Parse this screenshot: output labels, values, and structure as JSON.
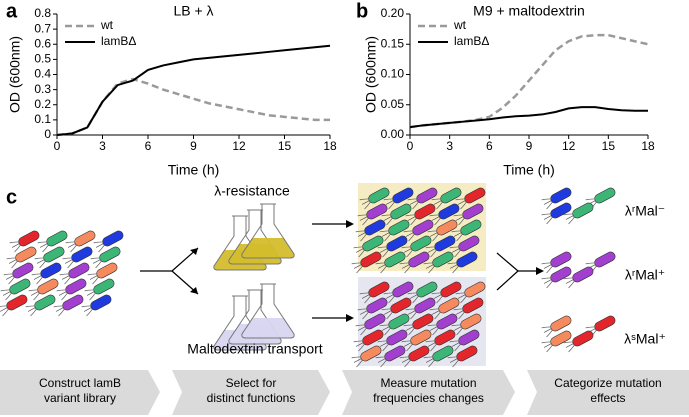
{
  "chart_data": [
    {
      "type": "line",
      "panel": "a",
      "title": "LB + λ",
      "xlabel": "Time (h)",
      "ylabel": "OD (600nm)",
      "x": [
        0,
        1,
        2,
        3,
        4,
        5,
        6,
        7,
        8,
        9,
        10,
        11,
        12,
        13,
        14,
        15,
        16,
        17,
        18
      ],
      "series": [
        {
          "name": "wt",
          "color": "#9a9a9a",
          "dashed": true,
          "values": [
            0,
            0.01,
            0.05,
            0.22,
            0.34,
            0.37,
            0.34,
            0.3,
            0.27,
            0.24,
            0.21,
            0.19,
            0.17,
            0.15,
            0.13,
            0.12,
            0.11,
            0.1,
            0.1
          ]
        },
        {
          "name": "lamBΔ",
          "color": "#000000",
          "dashed": false,
          "values": [
            0,
            0.01,
            0.05,
            0.22,
            0.33,
            0.36,
            0.43,
            0.46,
            0.48,
            0.5,
            0.51,
            0.52,
            0.53,
            0.54,
            0.55,
            0.56,
            0.57,
            0.58,
            0.59
          ]
        }
      ],
      "xlim": [
        0,
        18
      ],
      "xticks": [
        0,
        3,
        6,
        9,
        12,
        15,
        18
      ],
      "ylim": [
        0,
        0.8
      ],
      "yticks": [
        0,
        0.1,
        0.2,
        0.3,
        0.4,
        0.5,
        0.6,
        0.7,
        0.8
      ]
    },
    {
      "type": "line",
      "panel": "b",
      "title": "M9 + maltodextrin",
      "xlabel": "Time (h)",
      "ylabel": "OD (600nm)",
      "x": [
        0,
        1,
        2,
        3,
        4,
        5,
        6,
        7,
        8,
        9,
        10,
        11,
        12,
        13,
        14,
        15,
        16,
        17,
        18
      ],
      "series": [
        {
          "name": "wt",
          "color": "#9a9a9a",
          "dashed": true,
          "values": [
            0.013,
            0.016,
            0.018,
            0.02,
            0.022,
            0.025,
            0.03,
            0.045,
            0.065,
            0.09,
            0.115,
            0.14,
            0.155,
            0.163,
            0.165,
            0.165,
            0.16,
            0.155,
            0.15
          ]
        },
        {
          "name": "lamBΔ",
          "color": "#000000",
          "dashed": false,
          "values": [
            0.013,
            0.016,
            0.018,
            0.02,
            0.022,
            0.024,
            0.026,
            0.029,
            0.031,
            0.032,
            0.034,
            0.038,
            0.044,
            0.046,
            0.046,
            0.043,
            0.041,
            0.04,
            0.04
          ]
        }
      ],
      "xlim": [
        0,
        18
      ],
      "xticks": [
        0,
        3,
        6,
        9,
        12,
        15,
        18
      ],
      "ylim": [
        0,
        0.2
      ],
      "yticks": [
        {
          "value": 0,
          "label": "0.00"
        },
        {
          "value": 0.05,
          "label": "0.05"
        },
        {
          "value": 0.1,
          "label": "0.10"
        },
        {
          "value": 0.15,
          "label": "0.15"
        },
        {
          "value": 0.2,
          "label": "0.20"
        }
      ]
    }
  ],
  "diagram": {
    "panel": "c",
    "flask_labels": [
      "λ-resistance",
      "Maltodextrin transport"
    ],
    "outcomes": [
      "λʳMal⁻",
      "λʳMal⁺",
      "λˢMal⁺"
    ],
    "steps": [
      [
        "Construct lamB",
        "variant library"
      ],
      [
        "Select for",
        "distinct functions"
      ],
      [
        "Measure mutation",
        "frequencies changes"
      ],
      [
        "Categorize mutation",
        "effects"
      ]
    ]
  }
}
